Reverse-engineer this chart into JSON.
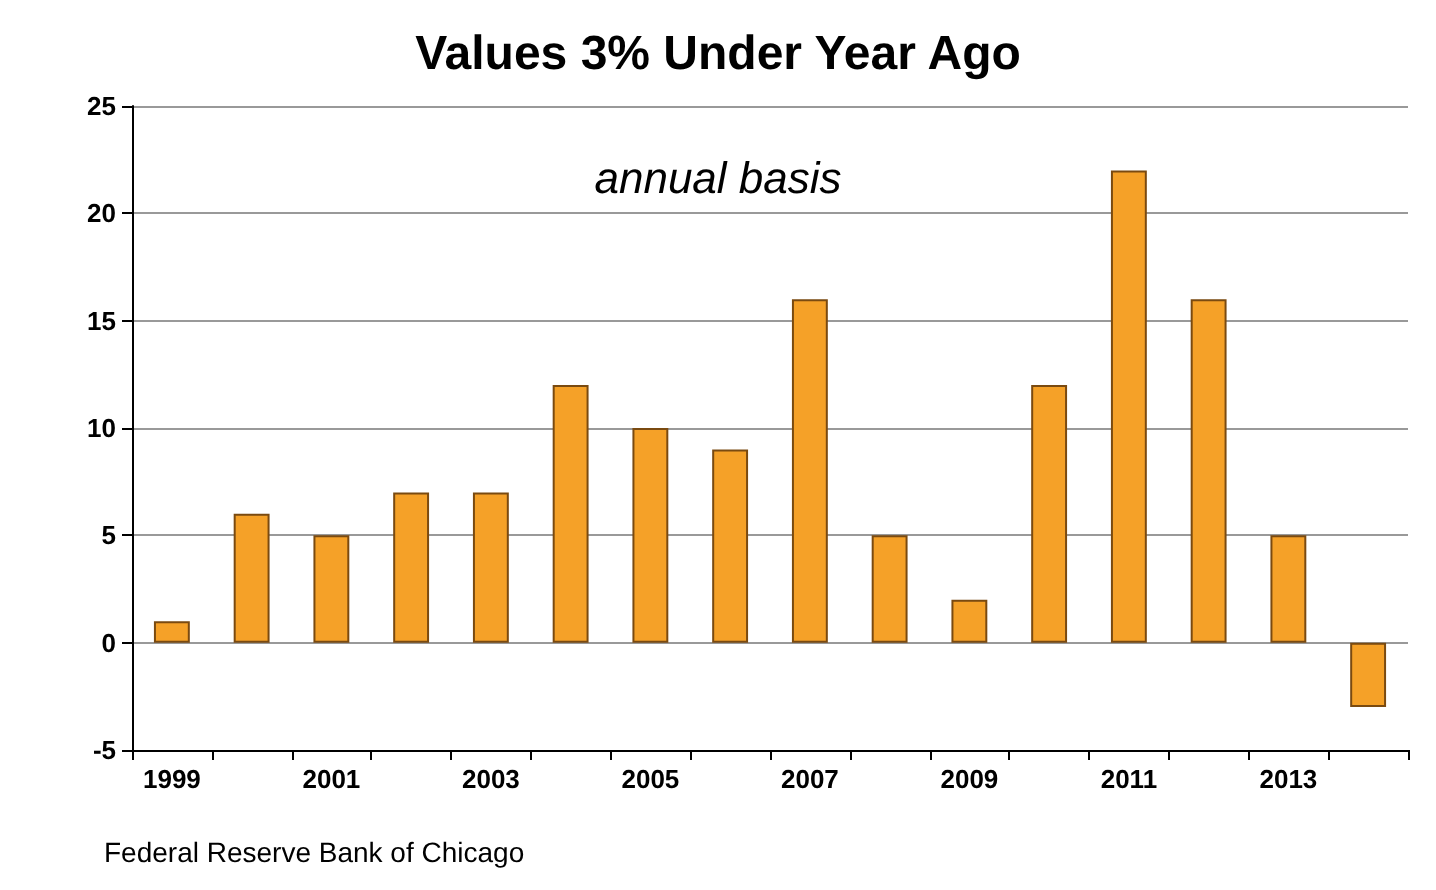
{
  "chart_data": {
    "type": "bar",
    "title": "Values 3% Under Year Ago",
    "subtitle": "annual basis",
    "categories": [
      "1999",
      null,
      "2001",
      null,
      "2003",
      null,
      "2005",
      null,
      "2007",
      null,
      "2009",
      null,
      "2011",
      null,
      "2013",
      null
    ],
    "values": [
      1,
      6,
      5,
      7,
      7,
      12,
      10,
      9,
      16,
      5,
      2,
      12,
      22,
      16,
      5,
      -3
    ],
    "color": "#f5a128",
    "ylim": [
      -5,
      25
    ],
    "yticks": [
      -5,
      0,
      5,
      10,
      15,
      20,
      25
    ],
    "grid": "y",
    "annotations": [
      "Federal Reserve Bank of Chicago"
    ]
  }
}
